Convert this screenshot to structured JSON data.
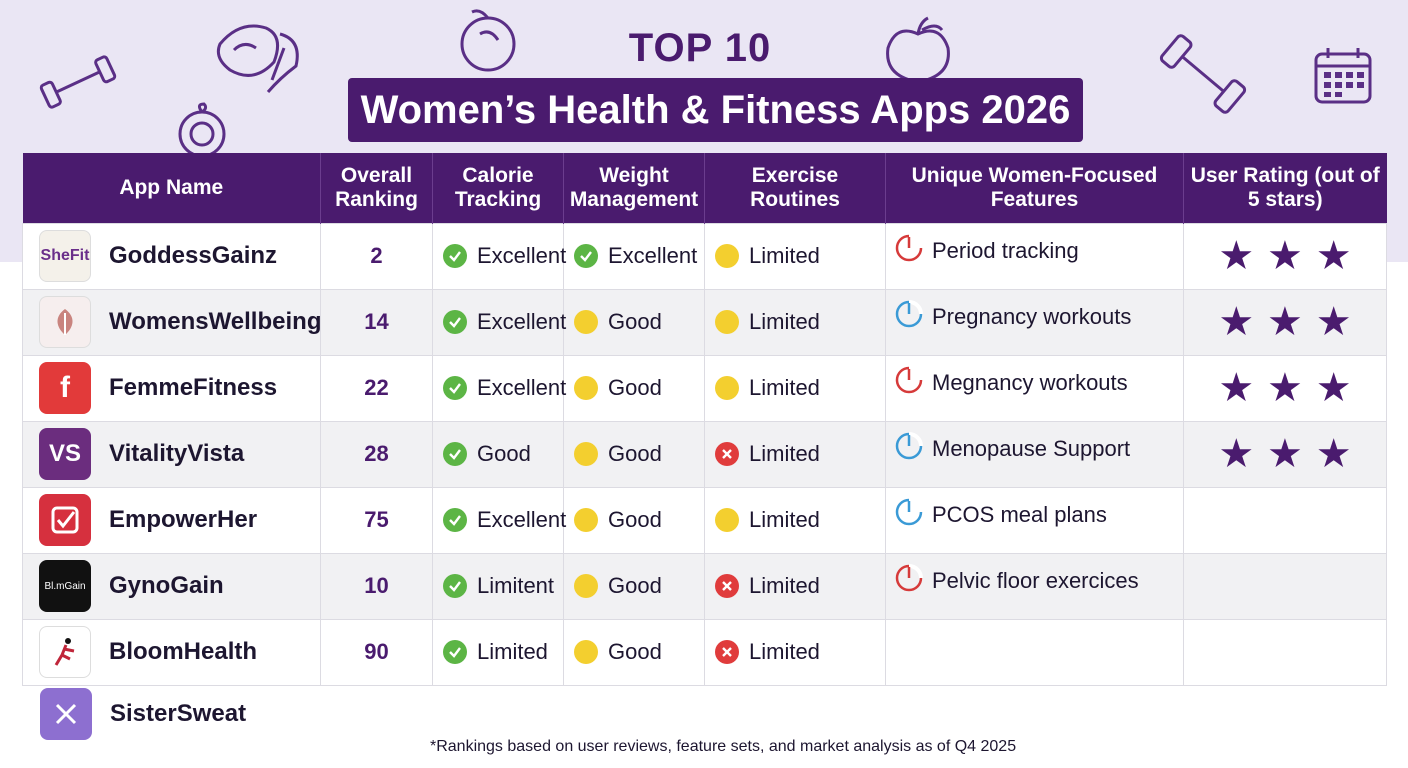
{
  "header": {
    "kicker": "TOP 10",
    "title": "Women’s Health & Fitness Apps 2026"
  },
  "columns": [
    "App Name",
    "Overall Ranking",
    "Calorie Tracking",
    "Weight Management",
    "Exercise Routines",
    "Unique Women-Focused Features",
    "User Rating (out of 5 stars)"
  ],
  "rows": [
    {
      "name": "GoddessGainz",
      "icon_text": "SheFit",
      "ranking": "2",
      "calorie": {
        "label": "Excellent",
        "status": "green"
      },
      "weight": {
        "label": "Excellent",
        "status": "green"
      },
      "exercise": {
        "label": "Limited",
        "status": "yellow"
      },
      "feature": "Period tracking",
      "feature_color": "#d63a3a",
      "stars": 3
    },
    {
      "name": "WomensWellbeing",
      "icon_text": "",
      "ranking": "14",
      "calorie": {
        "label": "Excellent",
        "status": "green"
      },
      "weight": {
        "label": "Good",
        "status": "yellow"
      },
      "exercise": {
        "label": "Limited",
        "status": "yellow"
      },
      "feature": "Pregnancy workouts",
      "feature_color": "#3a9ad6",
      "stars": 3
    },
    {
      "name": "FemmeFitness",
      "icon_text": "f",
      "ranking": "22",
      "calorie": {
        "label": "Excellent",
        "status": "green"
      },
      "weight": {
        "label": "Good",
        "status": "yellow"
      },
      "exercise": {
        "label": "Limited",
        "status": "yellow"
      },
      "feature": "Megnancy workouts",
      "feature_color": "#d63a3a",
      "stars": 3
    },
    {
      "name": "VitalityVista",
      "icon_text": "VS",
      "ranking": "28",
      "calorie": {
        "label": "Good",
        "status": "green"
      },
      "weight": {
        "label": "Good",
        "status": "yellow"
      },
      "exercise": {
        "label": "Limited",
        "status": "red"
      },
      "feature": "Menopause Support",
      "feature_color": "#3a9ad6",
      "stars": 3
    },
    {
      "name": "EmpowerHer",
      "icon_text": "",
      "ranking": "75",
      "calorie": {
        "label": "Excellent",
        "status": "green"
      },
      "weight": {
        "label": "Good",
        "status": "yellow"
      },
      "exercise": {
        "label": "Limited",
        "status": "yellow"
      },
      "feature": "PCOS meal plans",
      "feature_color": "#3a9ad6",
      "stars": 0
    },
    {
      "name": "GynoGain",
      "icon_text": "Bl.mGain",
      "ranking": "10",
      "calorie": {
        "label": "Limitent",
        "status": "green"
      },
      "weight": {
        "label": "Good",
        "status": "yellow"
      },
      "exercise": {
        "label": "Limited",
        "status": "red"
      },
      "feature": "Pelvic floor exercices",
      "feature_color": "#d63a3a",
      "stars": 0
    },
    {
      "name": "BloomHealth",
      "icon_text": "",
      "ranking": "90",
      "calorie": {
        "label": "Limited",
        "status": "green"
      },
      "weight": {
        "label": "Good",
        "status": "yellow"
      },
      "exercise": {
        "label": "Limited",
        "status": "red"
      },
      "feature": "",
      "feature_color": "",
      "stars": 0
    }
  ],
  "extra_app": {
    "name": "SisterSweat"
  },
  "footnote": "*Rankings based on user reviews, feature sets, and market analysis as of Q4 2025",
  "colors": {
    "brand": "#4a1b6e",
    "good": "#5cb545",
    "ok": "#f3cf2f",
    "bad": "#e03c3c"
  }
}
